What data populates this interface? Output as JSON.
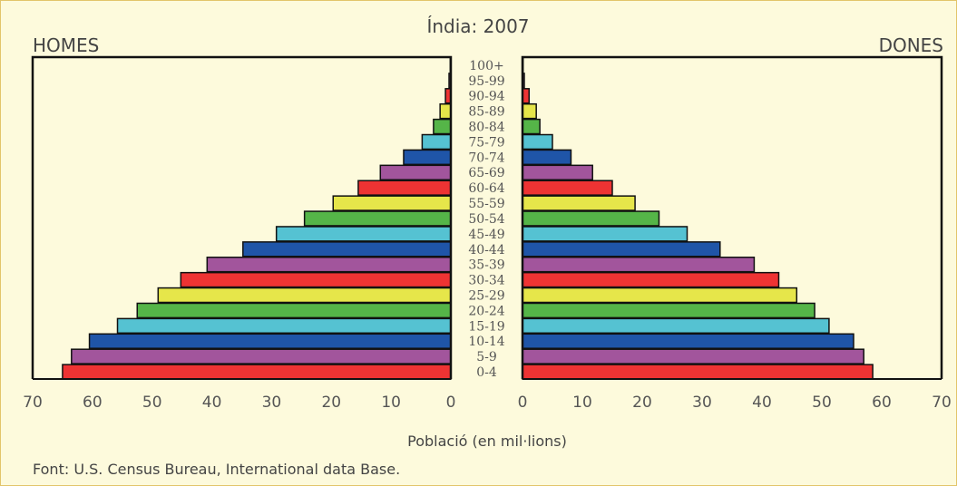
{
  "chart_data": {
    "type": "bar",
    "title": "Índia: 2007",
    "left_label": "HOMES",
    "right_label": "DONES",
    "xlabel": "Població (en mil·lions)",
    "source": "Font: U.S. Census Bureau, International data Base.",
    "xlim": [
      0,
      70
    ],
    "ticks_left": [
      "70",
      "60",
      "50",
      "40",
      "30",
      "20",
      "10",
      "0"
    ],
    "ticks_right": [
      "0",
      "10",
      "20",
      "30",
      "40",
      "50",
      "60",
      "70"
    ],
    "categories": [
      "0-4",
      "5-9",
      "10-14",
      "15-19",
      "20-24",
      "25-29",
      "30-34",
      "35-39",
      "40-44",
      "45-49",
      "50-54",
      "55-59",
      "60-64",
      "65-69",
      "70-74",
      "75-79",
      "80-84",
      "85-89",
      "90-94",
      "95-99",
      "100+"
    ],
    "series": [
      {
        "name": "HOMES",
        "values": [
          65.0,
          63.5,
          60.5,
          55.8,
          52.5,
          49.0,
          45.2,
          40.8,
          34.8,
          29.2,
          24.5,
          19.7,
          15.5,
          11.8,
          7.9,
          4.8,
          2.9,
          1.8,
          0.9,
          0.3,
          0.1
        ]
      },
      {
        "name": "DONES",
        "values": [
          58.5,
          57.0,
          55.3,
          51.2,
          48.8,
          45.8,
          42.8,
          38.7,
          33.0,
          27.5,
          22.8,
          18.8,
          15.0,
          11.7,
          8.1,
          5.0,
          2.9,
          2.3,
          1.1,
          0.3,
          0.1
        ]
      }
    ],
    "bar_colors": [
      "#ee3333",
      "#a2559c",
      "#1f55a8",
      "#55c2d2",
      "#55b548",
      "#e6e64a"
    ],
    "grid": false
  }
}
